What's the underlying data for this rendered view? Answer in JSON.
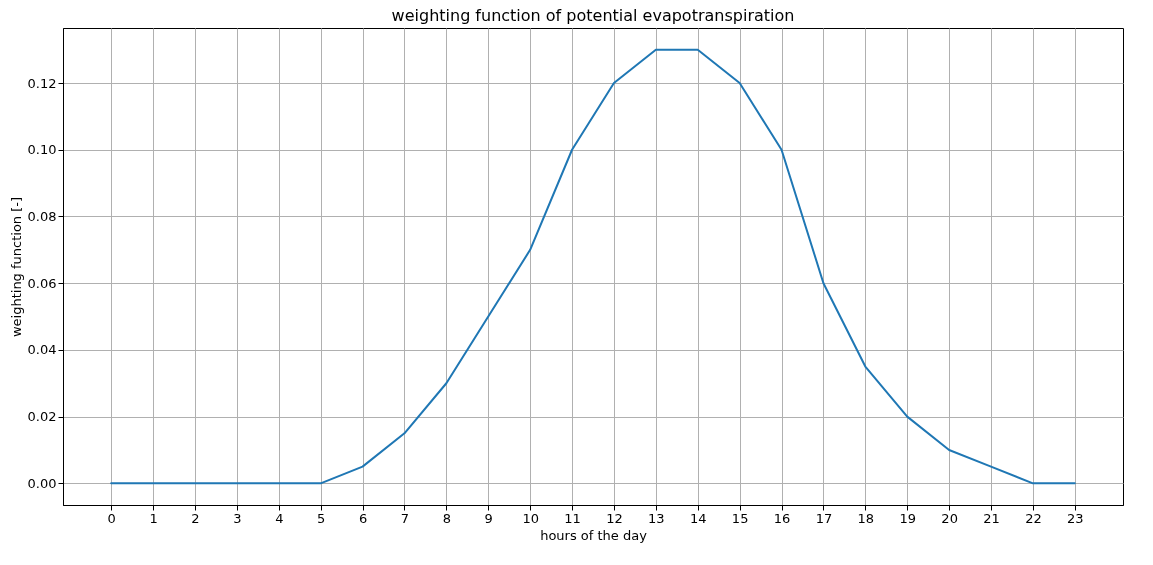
{
  "chart_data": {
    "type": "line",
    "title": "weighting function of potential evapotranspiration",
    "xlabel": "hours of the day",
    "ylabel": "weighting function [-]",
    "x": [
      0,
      1,
      2,
      3,
      4,
      5,
      6,
      7,
      8,
      9,
      10,
      11,
      12,
      13,
      14,
      15,
      16,
      17,
      18,
      19,
      20,
      21,
      22,
      23
    ],
    "series": [
      {
        "color": "#1f77b4",
        "values": [
          0,
          0,
          0,
          0,
          0,
          0,
          0.005,
          0.015,
          0.03,
          0.05,
          0.07,
          0.1,
          0.12,
          0.13,
          0.13,
          0.12,
          0.1,
          0.06,
          0.035,
          0.02,
          0.01,
          0.005,
          0,
          0
        ]
      }
    ],
    "xlim": [
      -1.15,
      24.15
    ],
    "xticks": [
      0,
      1,
      2,
      3,
      4,
      5,
      6,
      7,
      8,
      9,
      10,
      11,
      12,
      13,
      14,
      15,
      16,
      17,
      18,
      19,
      20,
      21,
      22,
      23
    ],
    "ylim": [
      -0.0065,
      0.1365
    ],
    "yticks": [
      {
        "value": 0,
        "label": "0.00"
      },
      {
        "value": 0.02,
        "label": "0.02"
      },
      {
        "value": 0.04,
        "label": "0.04"
      },
      {
        "value": 0.06,
        "label": "0.06"
      },
      {
        "value": 0.08,
        "label": "0.08"
      },
      {
        "value": 0.1,
        "label": "0.10"
      },
      {
        "value": 0.12,
        "label": "0.12"
      }
    ],
    "grid": true,
    "marker": "none",
    "line_style": "solid"
  }
}
